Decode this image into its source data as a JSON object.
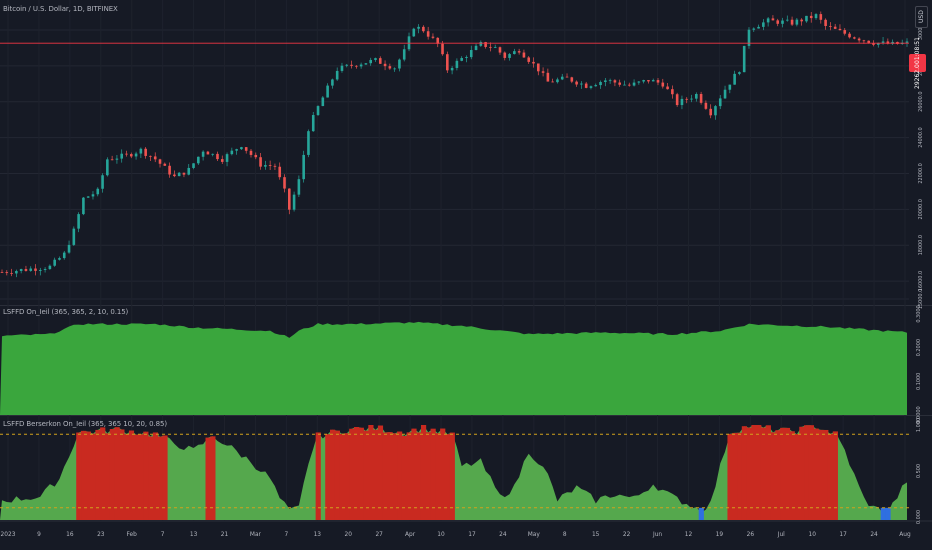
{
  "header": {
    "symbol_title": "Bitcoin / U.S. Dollar, 1D, BITFINEX",
    "currency_button": "USD"
  },
  "last_price": {
    "value": "29262.0",
    "countdown": "01:08:51"
  },
  "panes": {
    "indicator1": {
      "title": "LSFFD On_Ieil (365, 365, 2, 10, 0.15)",
      "axis_labels": [
        "0.3000",
        "0.2000",
        "0.1000",
        "0.0000"
      ],
      "fill_color": "#3aa63d"
    },
    "indicator2": {
      "title": "LSFFD Berserkon On_Ieil (365, 365 10, 20, 0.85)",
      "axis_labels": [
        "1.000",
        "0.500",
        "0.000"
      ],
      "fill_color": "#55a84d",
      "signal_high_color": "#c92a20",
      "signal_low_color": "#2f6fe0",
      "threshold_color": "#d2a21d",
      "thresholds": [
        0.9,
        0.1
      ]
    }
  },
  "price_axis_labels": [
    "30000.0",
    "28000.0",
    "26000.0",
    "24000.0",
    "22000.0",
    "20000.0",
    "18000.0",
    "16000.0",
    "15000.0"
  ],
  "time_axis_labels": [
    "2023",
    "9",
    "16",
    "23",
    "Feb",
    "7",
    "13",
    "21",
    "Mar",
    "7",
    "13",
    "20",
    "27",
    "Apr",
    "10",
    "17",
    "24",
    "May",
    "8",
    "15",
    "22",
    "Jun",
    "12",
    "19",
    "26",
    "Jul",
    "10",
    "17",
    "24",
    "Aug"
  ],
  "chart_data": {
    "type": "candlestick",
    "series": [
      {
        "name": "Bitcoin / U.S. Dollar",
        "close_anchors": [
          [
            0,
            16500
          ],
          [
            10,
            16800
          ],
          [
            13,
            17500
          ],
          [
            15,
            18800
          ],
          [
            17,
            20600
          ],
          [
            20,
            21000
          ],
          [
            22,
            22800
          ],
          [
            26,
            23000
          ],
          [
            29,
            23300
          ],
          [
            32,
            22800
          ],
          [
            36,
            21800
          ],
          [
            39,
            22200
          ],
          [
            42,
            23300
          ],
          [
            46,
            22800
          ],
          [
            50,
            23600
          ],
          [
            54,
            22500
          ],
          [
            57,
            22400
          ],
          [
            59,
            21000
          ],
          [
            60,
            20000
          ],
          [
            62,
            21600
          ],
          [
            64,
            24500
          ],
          [
            66,
            25700
          ],
          [
            70,
            27800
          ],
          [
            74,
            28100
          ],
          [
            78,
            28300
          ],
          [
            82,
            27900
          ],
          [
            84,
            28800
          ],
          [
            86,
            30200
          ],
          [
            88,
            30000
          ],
          [
            91,
            29200
          ],
          [
            93,
            27800
          ],
          [
            96,
            28400
          ],
          [
            100,
            29200
          ],
          [
            103,
            29000
          ],
          [
            105,
            28500
          ],
          [
            108,
            28900
          ],
          [
            112,
            27800
          ],
          [
            114,
            27100
          ],
          [
            118,
            27300
          ],
          [
            122,
            26900
          ],
          [
            126,
            27200
          ],
          [
            131,
            26900
          ],
          [
            135,
            27200
          ],
          [
            138,
            27000
          ],
          [
            141,
            25900
          ],
          [
            145,
            26400
          ],
          [
            148,
            25400
          ],
          [
            151,
            26700
          ],
          [
            154,
            27800
          ],
          [
            156,
            30100
          ],
          [
            160,
            30500
          ],
          [
            165,
            30400
          ],
          [
            170,
            30800
          ],
          [
            172,
            30200
          ],
          [
            178,
            29600
          ],
          [
            182,
            29300
          ],
          [
            186,
            29200
          ],
          [
            189,
            29262
          ]
        ],
        "price_range": [
          15000,
          31000
        ],
        "up_color": "#26a69a",
        "down_color": "#ef5350"
      },
      {
        "name": "LSFFD On_Ieil",
        "y_range": [
          0,
          0.3
        ],
        "anchors": [
          [
            0,
            0.235
          ],
          [
            10,
            0.24
          ],
          [
            16,
            0.27
          ],
          [
            24,
            0.27
          ],
          [
            32,
            0.27
          ],
          [
            40,
            0.26
          ],
          [
            48,
            0.255
          ],
          [
            56,
            0.25
          ],
          [
            60,
            0.23
          ],
          [
            62,
            0.25
          ],
          [
            66,
            0.27
          ],
          [
            74,
            0.27
          ],
          [
            86,
            0.275
          ],
          [
            96,
            0.265
          ],
          [
            110,
            0.24
          ],
          [
            126,
            0.245
          ],
          [
            140,
            0.24
          ],
          [
            150,
            0.25
          ],
          [
            156,
            0.27
          ],
          [
            172,
            0.262
          ],
          [
            189,
            0.245
          ]
        ]
      },
      {
        "name": "LSFFD Berserkon On_Ieil",
        "y_range": [
          0,
          1
        ],
        "anchors": [
          [
            0,
            0.18
          ],
          [
            8,
            0.22
          ],
          [
            12,
            0.42
          ],
          [
            16,
            0.92
          ],
          [
            24,
            0.95
          ],
          [
            32,
            0.9
          ],
          [
            36,
            0.8
          ],
          [
            40,
            0.72
          ],
          [
            44,
            0.88
          ],
          [
            48,
            0.75
          ],
          [
            52,
            0.6
          ],
          [
            56,
            0.42
          ],
          [
            58,
            0.2
          ],
          [
            60,
            0.06
          ],
          [
            62,
            0.1
          ],
          [
            64,
            0.6
          ],
          [
            66,
            0.88
          ],
          [
            72,
            0.95
          ],
          [
            78,
            0.97
          ],
          [
            84,
            0.92
          ],
          [
            88,
            0.97
          ],
          [
            94,
            0.9
          ],
          [
            96,
            0.55
          ],
          [
            100,
            0.6
          ],
          [
            104,
            0.22
          ],
          [
            107,
            0.32
          ],
          [
            110,
            0.72
          ],
          [
            112,
            0.6
          ],
          [
            114,
            0.45
          ],
          [
            116,
            0.18
          ],
          [
            120,
            0.32
          ],
          [
            124,
            0.18
          ],
          [
            128,
            0.25
          ],
          [
            132,
            0.2
          ],
          [
            136,
            0.36
          ],
          [
            140,
            0.22
          ],
          [
            144,
            0.12
          ],
          [
            146,
            0.08
          ],
          [
            148,
            0.15
          ],
          [
            150,
            0.55
          ],
          [
            152,
            0.92
          ],
          [
            156,
            0.99
          ],
          [
            160,
            0.96
          ],
          [
            164,
            0.93
          ],
          [
            166,
            0.94
          ],
          [
            170,
            0.99
          ],
          [
            174,
            0.9
          ],
          [
            176,
            0.72
          ],
          [
            178,
            0.45
          ],
          [
            180,
            0.2
          ],
          [
            182,
            0.1
          ],
          [
            185,
            0.05
          ],
          [
            187,
            0.22
          ],
          [
            189,
            0.4
          ]
        ],
        "high_signal_threshold": 0.86,
        "low_signal_threshold": 0.07
      }
    ],
    "bars": 190,
    "price_line": 29262,
    "grid": true
  }
}
